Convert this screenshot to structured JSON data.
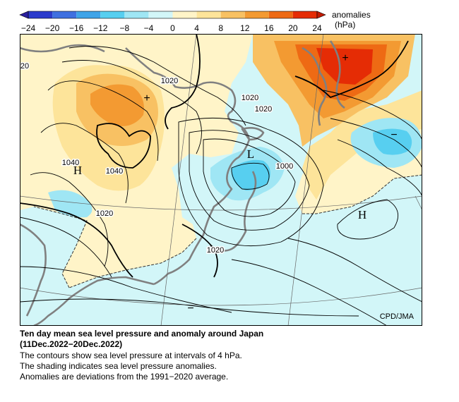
{
  "legend": {
    "title_line1": "anomalies",
    "title_line2": "(hPa)",
    "ticks": [
      "−24",
      "−20",
      "−16",
      "−12",
      "−8",
      "−4",
      "0",
      "4",
      "8",
      "12",
      "16",
      "20",
      "24"
    ],
    "colors": [
      "#2c3ccc",
      "#3f70e0",
      "#3fa4e8",
      "#57cff0",
      "#9fe6f4",
      "#d2f6f8",
      "#fff4c8",
      "#fde49a",
      "#f8c163",
      "#f39a32",
      "#ee6a14",
      "#e52c05"
    ]
  },
  "map": {
    "credit": "CPD/JMA",
    "contour_labels": [
      "1020",
      "1020",
      "1020",
      "1040",
      "1040",
      "1000",
      "1020",
      "1020",
      "20"
    ],
    "pressure_centers": [
      "H",
      "H",
      "L"
    ],
    "anomaly_signs": [
      "+",
      "+",
      "−",
      "−"
    ]
  },
  "caption": {
    "title_line1": "Ten day mean sea level pressure and anomaly around Japan",
    "title_line2": "(11Dec.2022−20Dec.2022)",
    "line1": "The contours show sea level pressure at intervals of 4 hPa.",
    "line2": "The shading indicates sea level pressure anomalies.",
    "line3": "Anomalies are deviations from the 1991−2020 average."
  }
}
